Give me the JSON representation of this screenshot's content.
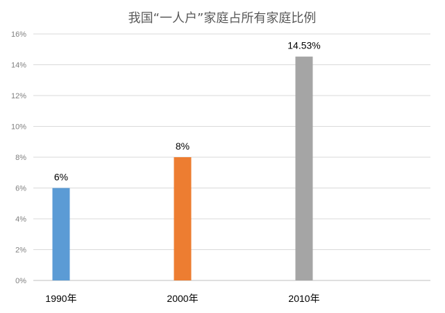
{
  "chart_data": {
    "type": "bar",
    "title": "我国“一人户”家庭占所有家庭比例",
    "categories": [
      "1990年",
      "2000年",
      "2010年"
    ],
    "values": [
      6,
      8,
      14.53
    ],
    "data_labels": [
      "6%",
      "8%",
      "14.53%"
    ],
    "bar_colors": [
      "#5b9bd5",
      "#ed7d31",
      "#a5a5a5"
    ],
    "ylim": [
      0,
      16
    ],
    "yticks": [
      "0%",
      "2%",
      "4%",
      "6%",
      "8%",
      "10%",
      "12%",
      "14%",
      "16%"
    ],
    "xlabel": "",
    "ylabel": "",
    "grid": true,
    "legend": "none"
  }
}
